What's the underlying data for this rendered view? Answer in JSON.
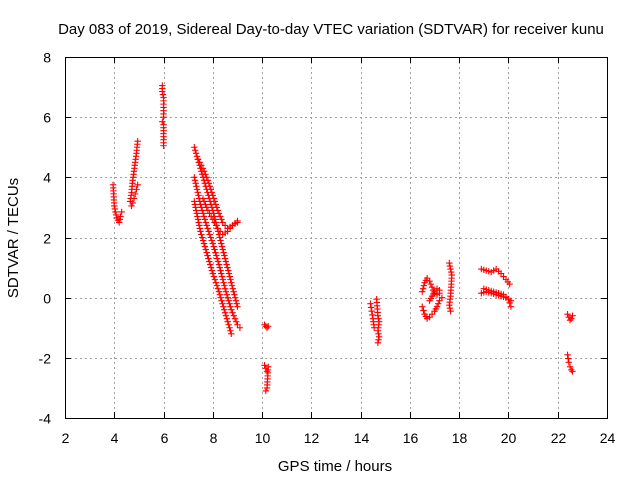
{
  "chart_data": {
    "type": "scatter",
    "title": "Day 083 of 2019, Sidereal Day-to-day VTEC variation (SDTVAR) for receiver kunu",
    "xlabel": "GPS time / hours",
    "ylabel": "SDTVAR / TECUs",
    "xlim": [
      2,
      24
    ],
    "ylim": [
      -4,
      8
    ],
    "xticks": [
      "2",
      "4",
      "6",
      "8",
      "10",
      "12",
      "14",
      "16",
      "18",
      "20",
      "22",
      "24"
    ],
    "yticks": [
      "-4",
      "-2",
      "0",
      "2",
      "4",
      "6",
      "8"
    ],
    "grid": true,
    "marker": "+",
    "color": "#ff0000",
    "segments": [
      {
        "x": [
          3.95,
          4.0,
          4.05,
          4.1,
          4.2,
          4.25,
          4.3
        ],
        "y": [
          3.75,
          3.05,
          2.85,
          2.65,
          2.5,
          2.7,
          2.85
        ]
      },
      {
        "x": [
          4.65,
          4.7,
          4.75,
          4.8,
          4.85,
          4.9,
          4.95
        ],
        "y": [
          3.2,
          3.5,
          3.9,
          4.2,
          4.5,
          4.8,
          5.2
        ]
      },
      {
        "x": [
          4.7,
          4.75,
          4.8,
          4.85,
          4.9,
          4.95
        ],
        "y": [
          3.05,
          3.15,
          3.3,
          3.45,
          3.6,
          3.75
        ]
      },
      {
        "x": [
          5.95,
          5.95,
          6.0,
          6.0,
          5.95,
          6.0,
          6.0
        ],
        "y": [
          7.05,
          6.85,
          6.65,
          6.0,
          5.85,
          5.75,
          5.05
        ]
      },
      {
        "x": [
          7.25,
          7.5,
          7.75,
          8.0,
          8.25,
          8.5,
          8.75,
          9.0
        ],
        "y": [
          5.0,
          4.3,
          3.6,
          2.9,
          2.1,
          1.3,
          0.5,
          -0.3
        ]
      },
      {
        "x": [
          7.25,
          7.5,
          7.75,
          8.0,
          8.25,
          8.5,
          8.75,
          9.0,
          9.1
        ],
        "y": [
          4.0,
          3.1,
          2.4,
          1.8,
          1.1,
          0.3,
          -0.4,
          -0.9,
          -1.0
        ]
      },
      {
        "x": [
          7.25,
          7.5,
          7.75,
          8.0,
          8.25,
          8.5,
          8.75
        ],
        "y": [
          3.2,
          2.2,
          1.5,
          0.8,
          0.2,
          -0.5,
          -1.2
        ]
      },
      {
        "x": [
          7.4,
          7.6,
          7.8,
          8.0,
          8.2,
          8.4,
          8.6,
          8.8,
          9.0
        ],
        "y": [
          4.6,
          4.3,
          3.9,
          3.4,
          2.9,
          2.5,
          2.3,
          2.4,
          2.5
        ]
      },
      {
        "x": [
          7.6,
          7.8,
          8.0,
          8.2,
          8.4,
          8.6,
          8.8,
          9.0
        ],
        "y": [
          3.3,
          2.9,
          2.6,
          2.3,
          2.1,
          2.2,
          2.4,
          2.55
        ]
      },
      {
        "x": [
          10.1,
          10.15,
          10.2,
          10.25
        ],
        "y": [
          -0.9,
          -0.95,
          -1.0,
          -0.95
        ]
      },
      {
        "x": [
          10.1,
          10.15,
          10.2,
          10.25,
          10.2,
          10.15
        ],
        "y": [
          -2.25,
          -2.35,
          -2.45,
          -2.3,
          -3.0,
          -3.1
        ]
      },
      {
        "x": [
          14.4,
          14.45,
          14.5,
          14.55
        ],
        "y": [
          -0.2,
          -0.45,
          -0.7,
          -1.0
        ]
      },
      {
        "x": [
          14.65,
          14.7,
          14.75,
          14.7,
          14.75,
          14.7
        ],
        "y": [
          -0.05,
          -0.6,
          -0.8,
          -1.1,
          -1.3,
          -1.5
        ]
      },
      {
        "x": [
          16.5,
          16.6,
          16.7,
          16.8,
          16.9,
          17.0,
          17.1,
          17.2
        ],
        "y": [
          0.2,
          0.5,
          0.65,
          0.55,
          0.35,
          0.15,
          0.1,
          0.15
        ]
      },
      {
        "x": [
          16.5,
          16.6,
          16.7,
          16.8,
          16.9,
          17.0,
          17.1,
          17.2,
          17.3
        ],
        "y": [
          -0.3,
          -0.55,
          -0.7,
          -0.65,
          -0.55,
          -0.45,
          -0.3,
          -0.1,
          0.0
        ]
      },
      {
        "x": [
          16.8,
          16.9,
          17.0,
          17.1,
          17.2
        ],
        "y": [
          -0.1,
          0.05,
          0.2,
          0.3,
          0.25
        ]
      },
      {
        "x": [
          17.6,
          17.65,
          17.7,
          17.65,
          17.6,
          17.65
        ],
        "y": [
          1.15,
          0.95,
          0.75,
          0.05,
          -0.25,
          -0.45
        ]
      },
      {
        "x": [
          18.9,
          19.1,
          19.3,
          19.5,
          19.7,
          19.9,
          20.05
        ],
        "y": [
          0.95,
          0.9,
          0.85,
          0.95,
          0.8,
          0.6,
          0.45
        ]
      },
      {
        "x": [
          18.9,
          19.1,
          19.3,
          19.5,
          19.7,
          19.9,
          20.1
        ],
        "y": [
          0.15,
          0.2,
          0.15,
          0.1,
          0.05,
          0.0,
          -0.1
        ]
      },
      {
        "x": [
          19.0,
          19.2,
          19.4,
          19.6,
          19.8,
          20.0,
          20.1
        ],
        "y": [
          0.3,
          0.25,
          0.2,
          0.15,
          0.1,
          -0.05,
          -0.3
        ]
      },
      {
        "x": [
          22.4,
          22.45,
          22.5,
          22.55,
          22.6
        ],
        "y": [
          -0.55,
          -0.65,
          -0.75,
          -0.7,
          -0.6
        ]
      },
      {
        "x": [
          22.4,
          22.45,
          22.5,
          22.55,
          22.6
        ],
        "y": [
          -1.9,
          -2.15,
          -2.3,
          -2.4,
          -2.45
        ]
      }
    ]
  }
}
